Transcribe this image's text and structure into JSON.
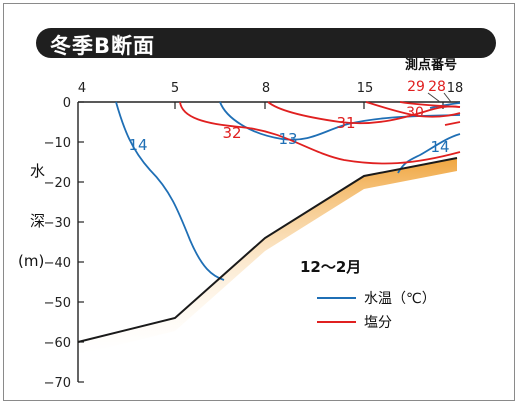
{
  "title": "冬季B断面",
  "chart_data": {
    "type": "line",
    "title": "冬季B断面",
    "period": "12〜2月",
    "ylabel": [
      "水",
      "深",
      "(m)"
    ],
    "top_axis_title": "測点番号",
    "x_station_labels": [
      "4",
      "5",
      "8",
      "15",
      "18"
    ],
    "x_station_labels_red": [
      "29",
      "28",
      "30"
    ],
    "y_ticks": [
      0,
      -10,
      -20,
      -30,
      -40,
      -50,
      -60,
      -70
    ],
    "ylim": [
      -70,
      0
    ],
    "legend": {
      "position": "lower-right",
      "entries": [
        {
          "name": "水温（℃）",
          "color": "#1f6fb5"
        },
        {
          "name": "塩分",
          "color": "#e02020"
        }
      ]
    },
    "series": [
      {
        "name": "水温（℃）",
        "color": "#1f6fb5",
        "contour_labels": [
          "14",
          "13",
          "14"
        ]
      },
      {
        "name": "塩分",
        "color": "#e02020",
        "contour_labels": [
          "32",
          "31",
          "30"
        ]
      }
    ],
    "seabed_profile": [
      [
        0,
        -60
      ],
      [
        1,
        -54
      ],
      [
        2,
        -34
      ],
      [
        3,
        -18.5
      ],
      [
        4,
        -14
      ]
    ]
  }
}
